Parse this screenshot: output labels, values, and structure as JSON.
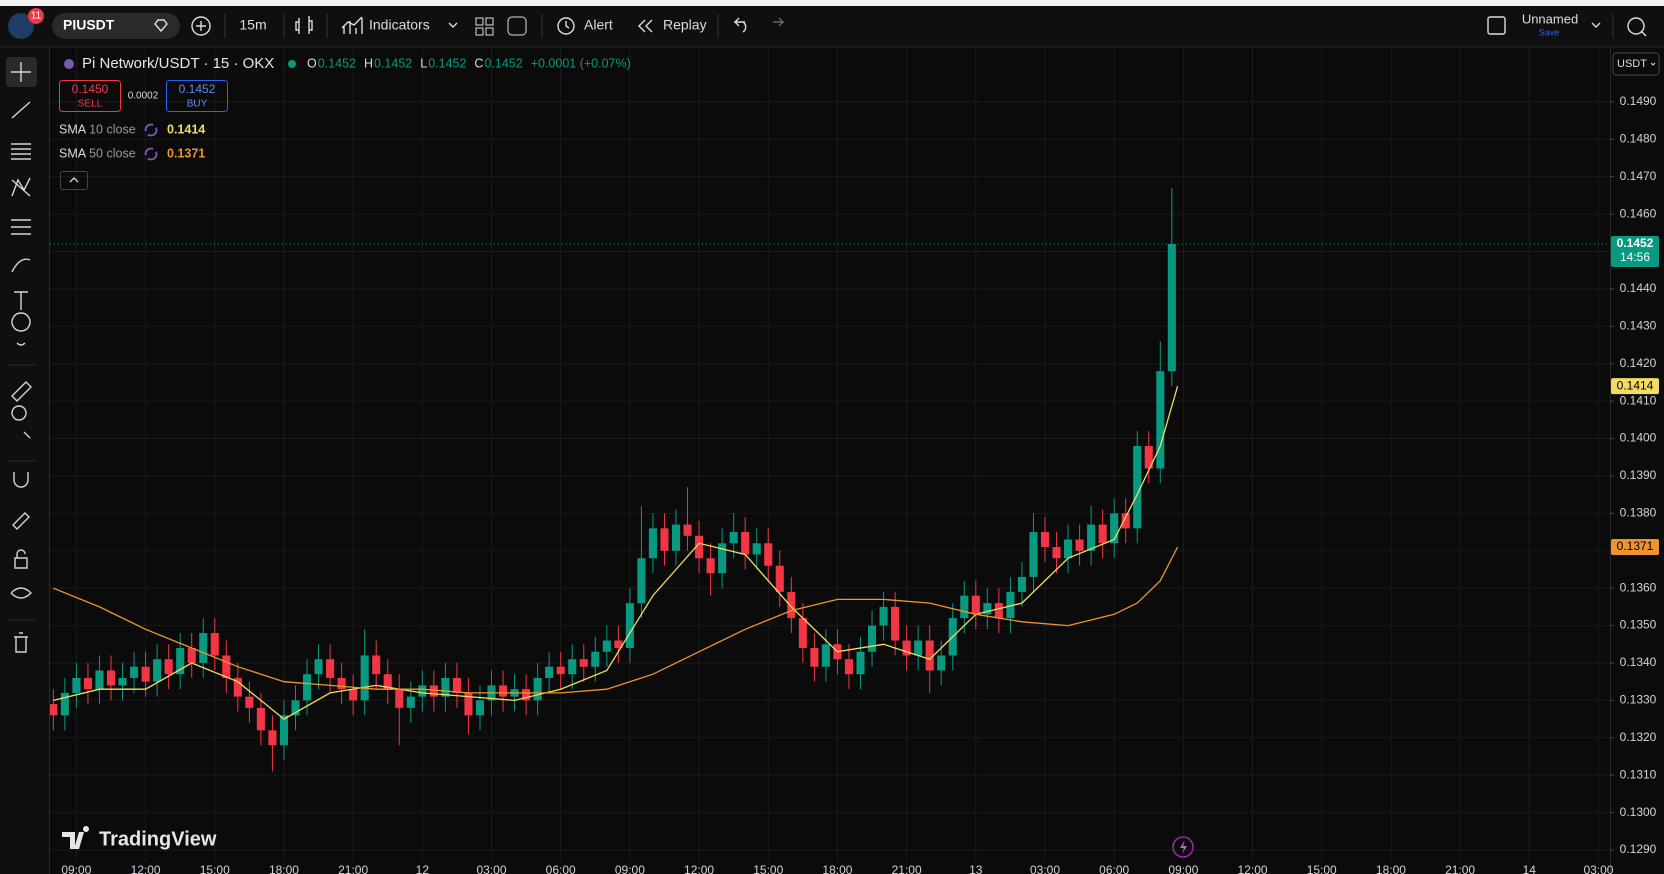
{
  "toolbar": {
    "badge": "11",
    "symbol": "PIUSDT",
    "interval": "15m",
    "indicators": "Indicators",
    "alert": "Alert",
    "replay": "Replay",
    "layout_name": "Unnamed",
    "save": "Save"
  },
  "chart_data": {
    "type": "candlestick",
    "title": "Pi Network/USDT · 15 · OKX",
    "ohlc_legend": [
      {
        "key": "O",
        "value": "0.1452"
      },
      {
        "key": "H",
        "value": "0.1452"
      },
      {
        "key": "L",
        "value": "0.1452"
      },
      {
        "key": "C",
        "value": "0.1452"
      }
    ],
    "change": "+0.0001 (+0.07%)",
    "trade": {
      "sell": "0.1450",
      "sell_label": "SELL",
      "spread": "0.0002",
      "buy": "0.1452",
      "buy_label": "BUY"
    },
    "up_color": "#089981",
    "down_color": "#f23645",
    "grid": true,
    "currency": "USDT",
    "x": [
      8,
      8.5,
      9,
      9.5,
      10,
      10.5,
      11,
      11.5,
      12,
      12.5,
      13,
      13.5,
      14,
      14.5,
      15,
      15.5,
      16,
      16.5,
      17,
      17.5,
      18,
      18.5,
      19,
      19.5,
      20,
      20.5,
      21,
      21.5,
      22,
      22.5,
      23,
      23.5,
      24,
      24.5,
      25,
      25.5,
      26,
      26.5,
      27,
      27.5,
      28,
      28.5,
      29,
      29.5,
      30,
      30.5,
      31,
      31.5,
      32,
      32.5,
      33,
      33.5,
      34,
      34.5,
      35,
      35.5,
      36,
      36.5,
      37,
      37.5,
      38,
      38.5,
      39,
      39.5,
      40,
      40.5,
      41,
      41.5,
      42,
      42.5,
      43,
      43.5,
      44,
      44.5,
      45,
      45.5,
      46,
      46.5,
      47,
      47.5,
      48,
      48.5,
      49,
      49.5,
      50,
      50.5,
      51,
      51.5,
      52,
      52.5,
      53,
      53.5,
      54,
      54.5,
      55,
      55.5,
      56,
      56.5
    ],
    "open": [
      0.1329,
      0.1326,
      0.1332,
      0.1336,
      0.1333,
      0.1338,
      0.1334,
      0.1336,
      0.1339,
      0.1335,
      0.1341,
      0.1337,
      0.1344,
      0.134,
      0.1348,
      0.1342,
      0.1336,
      0.1331,
      0.1328,
      0.1322,
      0.1318,
      0.1326,
      0.133,
      0.1337,
      0.1341,
      0.1336,
      0.1333,
      0.133,
      0.1342,
      0.1337,
      0.1333,
      0.1328,
      0.1331,
      0.1334,
      0.1331,
      0.1336,
      0.1332,
      0.1326,
      0.133,
      0.1334,
      0.1331,
      0.1333,
      0.133,
      0.1336,
      0.1339,
      0.1337,
      0.1341,
      0.1339,
      0.1343,
      0.1346,
      0.1344,
      0.1356,
      0.1368,
      0.1376,
      0.137,
      0.1377,
      0.1374,
      0.1368,
      0.1364,
      0.1372,
      0.1375,
      0.1369,
      0.1372,
      0.1366,
      0.1359,
      0.1352,
      0.1344,
      0.1339,
      0.1345,
      0.1341,
      0.1337,
      0.1343,
      0.135,
      0.1355,
      0.1346,
      0.1342,
      0.1346,
      0.1338,
      0.1342,
      0.1352,
      0.1358,
      0.1353,
      0.1356,
      0.1352,
      0.1359,
      0.1363,
      0.1375,
      0.1371,
      0.1368,
      0.1373,
      0.137,
      0.1377,
      0.1372,
      0.138,
      0.1376,
      0.1398,
      0.1392,
      0.1418
    ],
    "high": [
      0.1333,
      0.1336,
      0.134,
      0.134,
      0.1342,
      0.1342,
      0.134,
      0.1343,
      0.1343,
      0.1345,
      0.1345,
      0.1348,
      0.1348,
      0.1352,
      0.1352,
      0.1346,
      0.134,
      0.1335,
      0.1332,
      0.1326,
      0.133,
      0.1334,
      0.1341,
      0.1345,
      0.1345,
      0.134,
      0.1337,
      0.1349,
      0.1346,
      0.1341,
      0.1337,
      0.1335,
      0.1338,
      0.1338,
      0.134,
      0.134,
      0.1336,
      0.1334,
      0.1338,
      0.1338,
      0.1337,
      0.1337,
      0.134,
      0.1343,
      0.1343,
      0.1345,
      0.1345,
      0.1347,
      0.135,
      0.135,
      0.136,
      0.1382,
      0.138,
      0.138,
      0.1381,
      0.1387,
      0.1378,
      0.1372,
      0.1376,
      0.138,
      0.1379,
      0.1376,
      0.1376,
      0.137,
      0.1363,
      0.1356,
      0.1348,
      0.1349,
      0.1349,
      0.1345,
      0.1347,
      0.1354,
      0.1359,
      0.1359,
      0.135,
      0.135,
      0.135,
      0.1346,
      0.1356,
      0.1362,
      0.1362,
      0.136,
      0.136,
      0.1363,
      0.1367,
      0.138,
      0.1379,
      0.1375,
      0.1377,
      0.1377,
      0.1382,
      0.1381,
      0.1384,
      0.1384,
      0.1402,
      0.1402,
      0.1426,
      0.1467
    ],
    "low": [
      0.1322,
      0.1322,
      0.1328,
      0.1329,
      0.1329,
      0.133,
      0.133,
      0.1332,
      0.1331,
      0.1331,
      0.1333,
      0.1333,
      0.1336,
      0.1336,
      0.1338,
      0.1332,
      0.1327,
      0.1324,
      0.1318,
      0.1311,
      0.1314,
      0.1322,
      0.1326,
      0.1333,
      0.1332,
      0.1329,
      0.1326,
      0.1326,
      0.1333,
      0.1329,
      0.1318,
      0.1324,
      0.1327,
      0.1327,
      0.1327,
      0.1328,
      0.1321,
      0.1322,
      0.1326,
      0.1327,
      0.1327,
      0.1326,
      0.1326,
      0.1332,
      0.1333,
      0.1333,
      0.1335,
      0.1335,
      0.1339,
      0.134,
      0.134,
      0.1352,
      0.1364,
      0.1366,
      0.1366,
      0.137,
      0.1364,
      0.1358,
      0.136,
      0.1368,
      0.1365,
      0.1365,
      0.1362,
      0.1355,
      0.1348,
      0.134,
      0.1335,
      0.1335,
      0.1337,
      0.1333,
      0.1333,
      0.1339,
      0.1346,
      0.1342,
      0.1338,
      0.1338,
      0.1332,
      0.1334,
      0.1338,
      0.1348,
      0.1349,
      0.1349,
      0.1348,
      0.1348,
      0.1355,
      0.1359,
      0.1367,
      0.1364,
      0.1364,
      0.1366,
      0.1366,
      0.1368,
      0.1368,
      0.1372,
      0.1372,
      0.1388,
      0.1388,
      0.1414
    ],
    "close": [
      0.1326,
      0.1332,
      0.1336,
      0.1333,
      0.1338,
      0.1334,
      0.1336,
      0.1339,
      0.1335,
      0.1341,
      0.1337,
      0.1344,
      0.134,
      0.1348,
      0.1342,
      0.1336,
      0.1331,
      0.1328,
      0.1322,
      0.1318,
      0.1326,
      0.133,
      0.1337,
      0.1341,
      0.1336,
      0.1333,
      0.133,
      0.1342,
      0.1337,
      0.1333,
      0.1328,
      0.1331,
      0.1334,
      0.1331,
      0.1336,
      0.1332,
      0.1326,
      0.133,
      0.1334,
      0.1331,
      0.1333,
      0.133,
      0.1336,
      0.1339,
      0.1337,
      0.1341,
      0.1339,
      0.1343,
      0.1346,
      0.1344,
      0.1356,
      0.1368,
      0.1376,
      0.137,
      0.1377,
      0.1374,
      0.1368,
      0.1364,
      0.1372,
      0.1375,
      0.1369,
      0.1372,
      0.1366,
      0.1359,
      0.1352,
      0.1344,
      0.1339,
      0.1345,
      0.1341,
      0.1337,
      0.1343,
      0.135,
      0.1355,
      0.1346,
      0.1342,
      0.1346,
      0.1338,
      0.1342,
      0.1352,
      0.1358,
      0.1353,
      0.1356,
      0.1352,
      0.1359,
      0.1363,
      0.1375,
      0.1371,
      0.1368,
      0.1373,
      0.137,
      0.1377,
      0.1372,
      0.138,
      0.1376,
      0.1398,
      0.1392,
      0.1418,
      0.1452
    ],
    "lines": [
      {
        "name": "SMA",
        "params": "10 close",
        "color": "#f2dc63",
        "last_label": "0.1414",
        "x": [
          8,
          10,
          12,
          14,
          16,
          18,
          20,
          22,
          24,
          26,
          28,
          30,
          32,
          34,
          36,
          38,
          40,
          42,
          44,
          46,
          48,
          50,
          52,
          54,
          55,
          56,
          56.75
        ],
        "values": [
          0.133,
          0.1333,
          0.1333,
          0.134,
          0.1335,
          0.1325,
          0.1332,
          0.1334,
          0.1332,
          0.1331,
          0.133,
          0.1333,
          0.1338,
          0.1358,
          0.1372,
          0.1369,
          0.1355,
          0.1343,
          0.1345,
          0.1341,
          0.1353,
          0.1356,
          0.1368,
          0.1373,
          0.1385,
          0.1398,
          0.1414
        ]
      },
      {
        "name": "SMA",
        "params": "50 close",
        "color": "#f0932e",
        "last_label": "0.1371",
        "x": [
          8,
          10,
          12,
          14,
          16,
          18,
          20,
          22,
          24,
          26,
          28,
          30,
          32,
          34,
          36,
          38,
          40,
          42,
          44,
          46,
          48,
          50,
          52,
          54,
          55,
          56,
          56.75
        ],
        "values": [
          0.136,
          0.1355,
          0.1349,
          0.1344,
          0.1339,
          0.1335,
          0.1334,
          0.1333,
          0.1333,
          0.1332,
          0.1332,
          0.1332,
          0.1333,
          0.1337,
          0.1343,
          0.1349,
          0.1354,
          0.1357,
          0.1357,
          0.1356,
          0.1353,
          0.1351,
          0.135,
          0.1353,
          0.1356,
          0.1362,
          0.1371
        ]
      }
    ],
    "current": {
      "value": 0.1452,
      "label": "0.1452",
      "countdown": "14:56"
    },
    "xlim": [
      7.855,
      75.5
    ],
    "xticks": [
      {
        "value": 9,
        "label": "09:00"
      },
      {
        "value": 12,
        "label": "12:00"
      },
      {
        "value": 15,
        "label": "15:00"
      },
      {
        "value": 18,
        "label": "18:00"
      },
      {
        "value": 21,
        "label": "21:00"
      },
      {
        "value": 24,
        "label": "12"
      },
      {
        "value": 27,
        "label": "03:00"
      },
      {
        "value": 30,
        "label": "06:00"
      },
      {
        "value": 33,
        "label": "09:00"
      },
      {
        "value": 36,
        "label": "12:00"
      },
      {
        "value": 39,
        "label": "15:00"
      },
      {
        "value": 42,
        "label": "18:00"
      },
      {
        "value": 45,
        "label": "21:00"
      },
      {
        "value": 48,
        "label": "13"
      },
      {
        "value": 51,
        "label": "03:00"
      },
      {
        "value": 54,
        "label": "06:00"
      },
      {
        "value": 57,
        "label": "09:00"
      },
      {
        "value": 60,
        "label": "12:00"
      },
      {
        "value": 63,
        "label": "15:00"
      },
      {
        "value": 66,
        "label": "18:00"
      },
      {
        "value": 69,
        "label": "21:00"
      },
      {
        "value": 72,
        "label": "14"
      },
      {
        "value": 75,
        "label": "03:00"
      }
    ],
    "ylim": [
      0.128679,
      0.150441
    ],
    "yticks": [
      {
        "value": 0.129,
        "label": "0.1290"
      },
      {
        "value": 0.13,
        "label": "0.1300"
      },
      {
        "value": 0.131,
        "label": "0.1310"
      },
      {
        "value": 0.132,
        "label": "0.1320"
      },
      {
        "value": 0.133,
        "label": "0.1330"
      },
      {
        "value": 0.134,
        "label": "0.1340"
      },
      {
        "value": 0.135,
        "label": "0.1350"
      },
      {
        "value": 0.136,
        "label": "0.1360"
      },
      {
        "value": 0.137,
        "label": "0.1370"
      },
      {
        "value": 0.138,
        "label": "0.1380"
      },
      {
        "value": 0.139,
        "label": "0.1390"
      },
      {
        "value": 0.14,
        "label": "0.1400"
      },
      {
        "value": 0.141,
        "label": "0.1410"
      },
      {
        "value": 0.142,
        "label": "0.1420"
      },
      {
        "value": 0.143,
        "label": "0.1430"
      },
      {
        "value": 0.144,
        "label": "0.1440"
      },
      {
        "value": 0.145,
        "label": "0.1450"
      },
      {
        "value": 0.146,
        "label": "0.1460"
      },
      {
        "value": 0.147,
        "label": "0.1470"
      },
      {
        "value": 0.148,
        "label": "0.1480"
      },
      {
        "value": 0.149,
        "label": "0.1490"
      }
    ]
  },
  "branding": {
    "logo": "TradingView"
  }
}
